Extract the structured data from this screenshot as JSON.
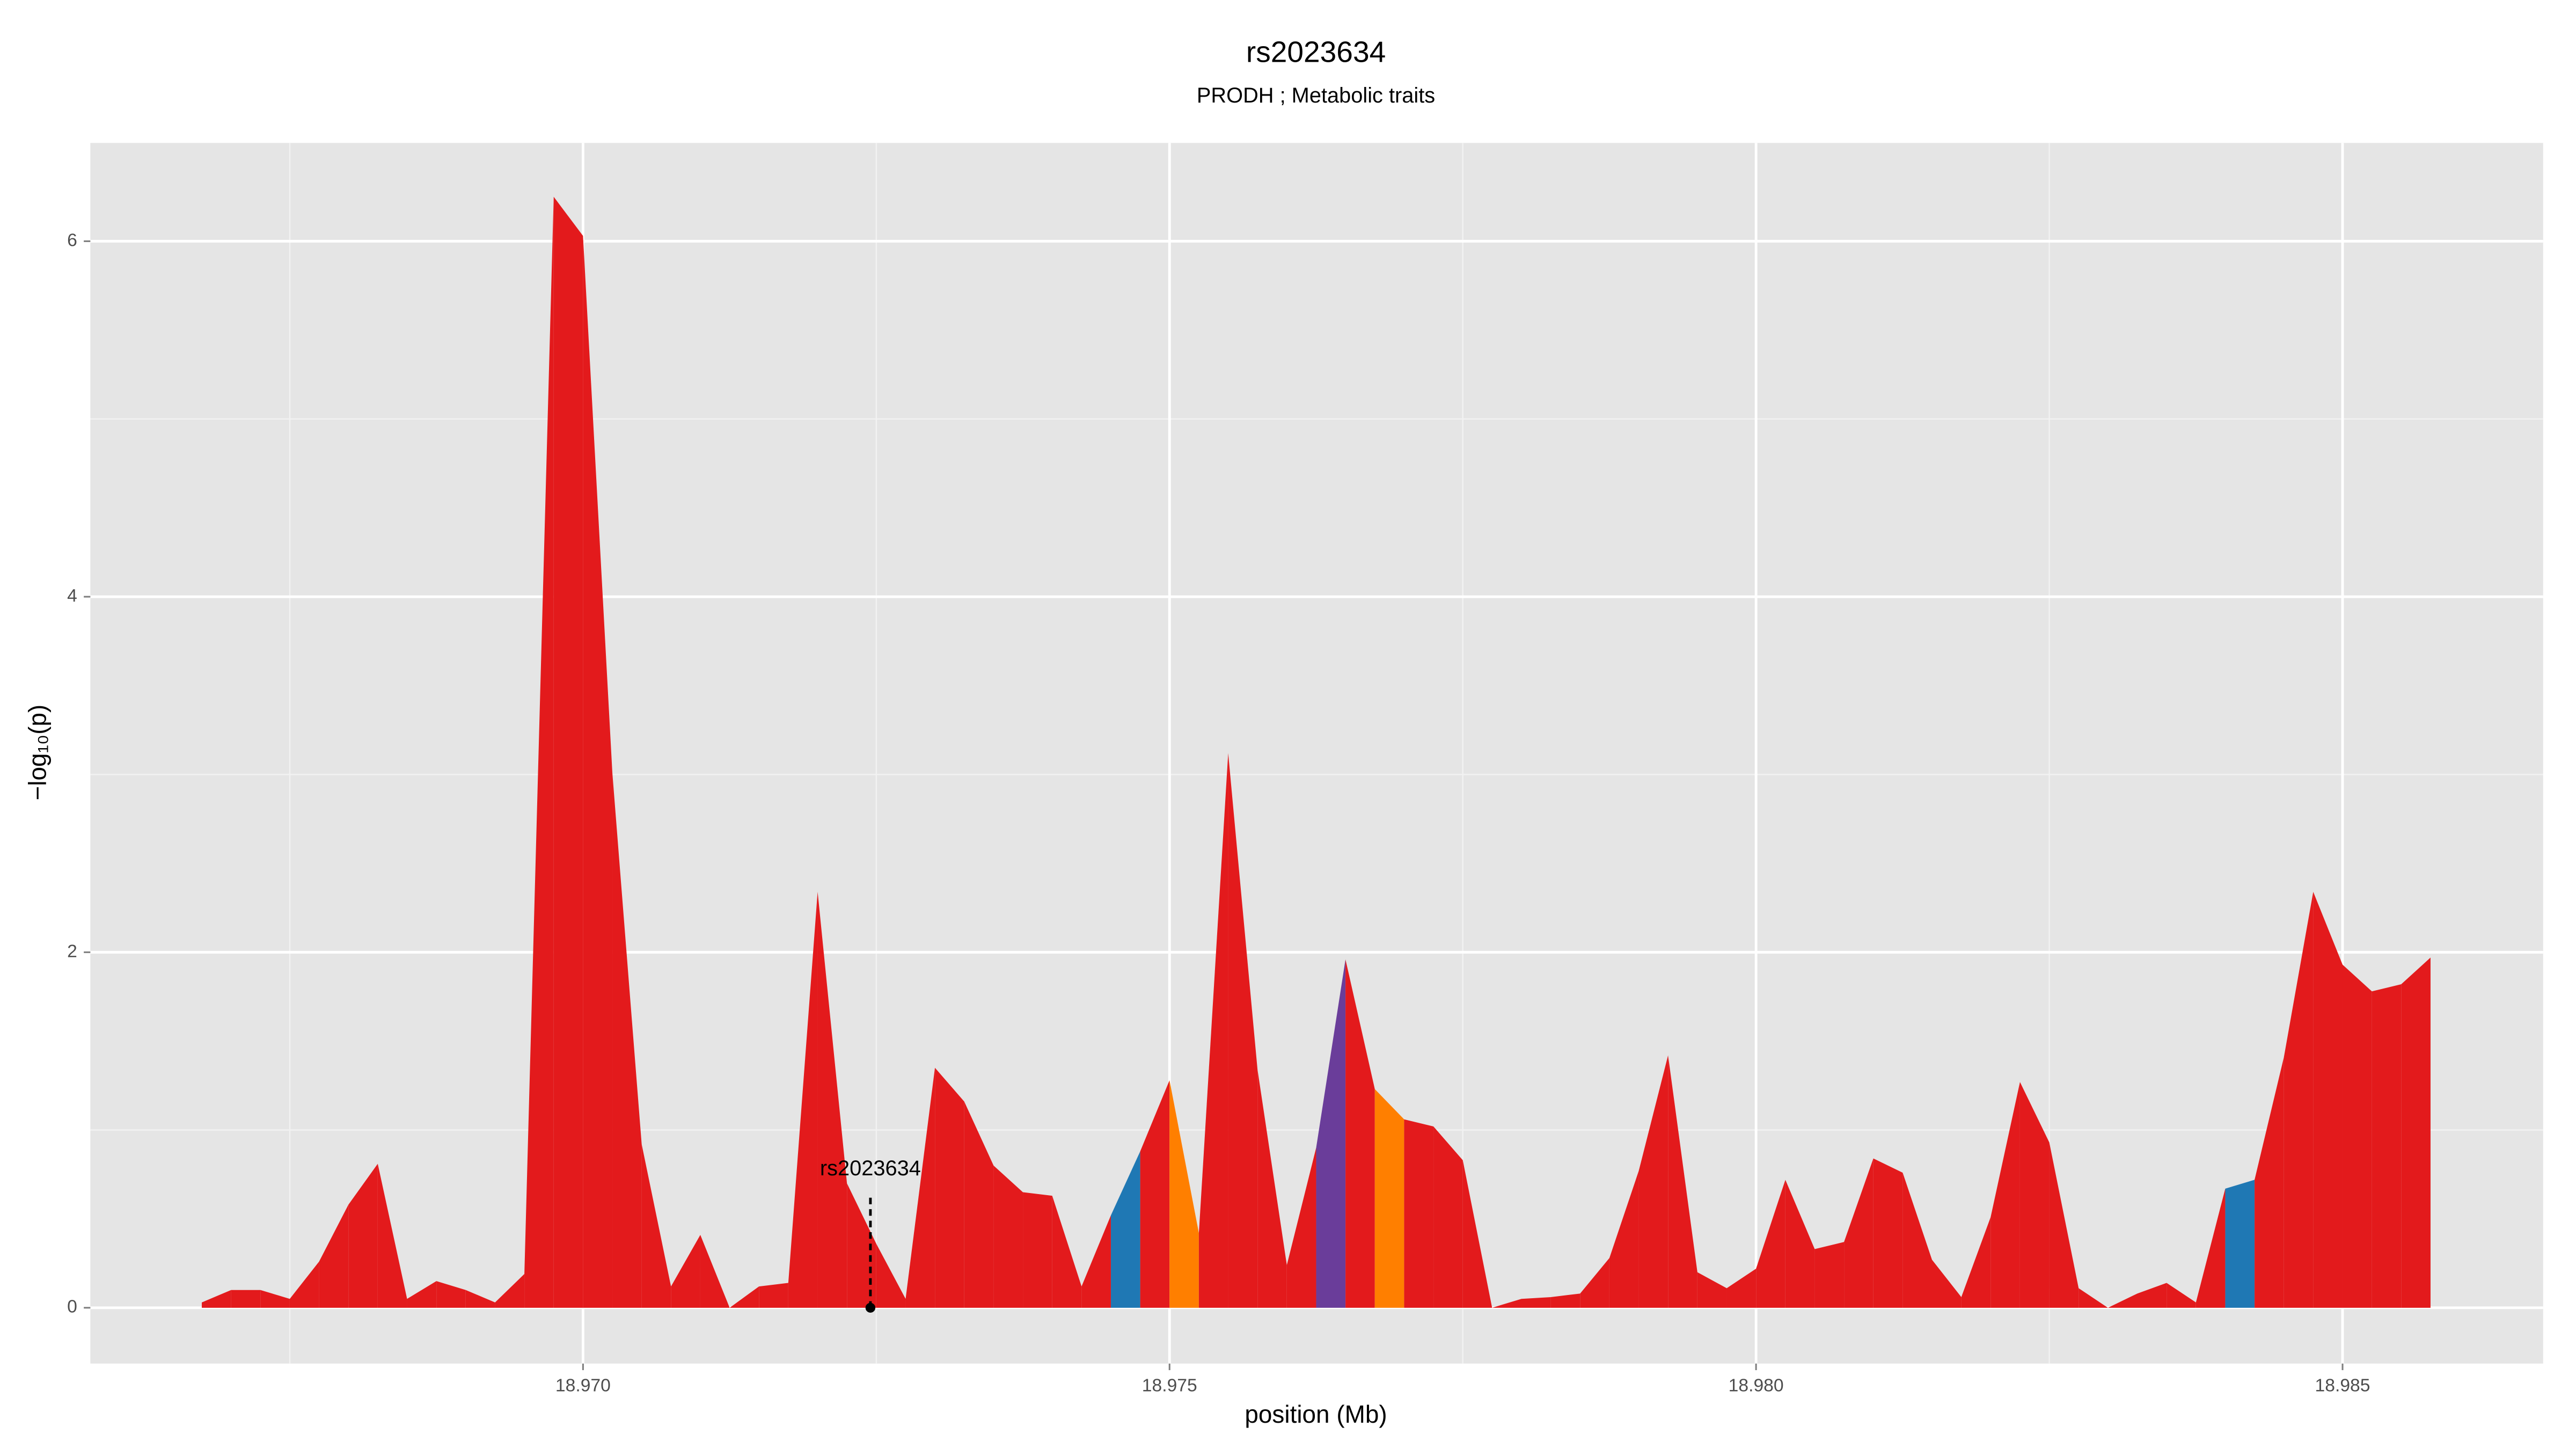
{
  "chart_data": {
    "type": "area",
    "title": "rs2023634",
    "subtitle": "PRODH ; Metabolic traits",
    "x_label": "position (Mb)",
    "y_label": "−log₁₀(p)",
    "x": [
      18.96675,
      18.967,
      18.96725,
      18.9675,
      18.96775,
      18.968,
      18.96825,
      18.9685,
      18.96875,
      18.969,
      18.96925,
      18.9695,
      18.96975,
      18.97,
      18.97025,
      18.9705,
      18.97075,
      18.971,
      18.97125,
      18.9715,
      18.97175,
      18.972,
      18.97225,
      18.9725,
      18.97275,
      18.973,
      18.97325,
      18.9735,
      18.97375,
      18.974,
      18.97425,
      18.9745,
      18.97475,
      18.975,
      18.97525,
      18.9755,
      18.97575,
      18.976,
      18.97625,
      18.9765,
      18.97675,
      18.977,
      18.97725,
      18.9775,
      18.97775,
      18.978,
      18.97825,
      18.9785,
      18.97875,
      18.979,
      18.97925,
      18.9795,
      18.97975,
      18.98,
      18.98025,
      18.9805,
      18.98075,
      18.981,
      18.98125,
      18.9815,
      18.98175,
      18.982,
      18.98225,
      18.9825,
      18.98275,
      18.983,
      18.98325,
      18.9835,
      18.98375,
      18.984,
      18.98425,
      18.9845,
      18.98475,
      18.985,
      18.98525,
      18.9855,
      18.98575
    ],
    "values": [
      0.03,
      0.1,
      0.1,
      0.05,
      0.26,
      0.58,
      0.81,
      0.05,
      0.15,
      0.1,
      0.03,
      0.19,
      6.25,
      6.03,
      3.01,
      0.92,
      0.12,
      0.41,
      0,
      0.12,
      0.14,
      2.34,
      0.7,
      0.36,
      0.05,
      1.35,
      1.16,
      0.8,
      0.65,
      0.63,
      0.12,
      0.52,
      0.88,
      1.28,
      0.42,
      3.12,
      1.34,
      0.24,
      0.9,
      1.96,
      1.23,
      1.06,
      1.02,
      0.83,
      0,
      0.05,
      0.06,
      0.08,
      0.28,
      0.77,
      1.42,
      0.2,
      0.11,
      0.22,
      0.72,
      0.33,
      0.37,
      0.84,
      0.76,
      0.27,
      0.06,
      0.51,
      1.27,
      0.93,
      0.11,
      0,
      0.08,
      0.14,
      0.03,
      0.67,
      0.72,
      1.41,
      2.34,
      1.93,
      1.78,
      1.82,
      1.97
    ],
    "segment_colors": [
      "#e31a1c",
      "#e31a1c",
      "#e31a1c",
      "#e31a1c",
      "#e31a1c",
      "#e31a1c",
      "#e31a1c",
      "#e31a1c",
      "#e31a1c",
      "#e31a1c",
      "#e31a1c",
      "#e31a1c",
      "#e31a1c",
      "#e31a1c",
      "#e31a1c",
      "#e31a1c",
      "#e31a1c",
      "#e31a1c",
      "#e31a1c",
      "#e31a1c",
      "#e31a1c",
      "#e31a1c",
      "#e31a1c",
      "#e31a1c",
      "#e31a1c",
      "#e31a1c",
      "#e31a1c",
      "#e31a1c",
      "#e31a1c",
      "#e31a1c",
      "#e31a1c",
      "#1f78b4",
      "#e31a1c",
      "#ff7f00",
      "#e31a1c",
      "#e31a1c",
      "#e31a1c",
      "#e31a1c",
      "#6a3d9a",
      "#e31a1c",
      "#ff7f00",
      "#e31a1c",
      "#e31a1c",
      "#e31a1c",
      "#e31a1c",
      "#e31a1c",
      "#e31a1c",
      "#e31a1c",
      "#e31a1c",
      "#e31a1c",
      "#e31a1c",
      "#e31a1c",
      "#e31a1c",
      "#e31a1c",
      "#e31a1c",
      "#e31a1c",
      "#e31a1c",
      "#e31a1c",
      "#e31a1c",
      "#e31a1c",
      "#e31a1c",
      "#e31a1c",
      "#e31a1c",
      "#e31a1c",
      "#e31a1c",
      "#e31a1c",
      "#e31a1c",
      "#e31a1c",
      "#e31a1c",
      "#1f78b4",
      "#e31a1c",
      "#e31a1c",
      "#e31a1c",
      "#e31a1c",
      "#e31a1c",
      "#e31a1c"
    ],
    "marker": {
      "label": "rs2023634",
      "x": 18.97245,
      "y": 0
    },
    "xlim": [
      18.9658,
      18.98671
    ],
    "ylim": [
      -0.314,
      6.553
    ],
    "xticks": [
      {
        "value": 18.97,
        "label": "18.970"
      },
      {
        "value": 18.975,
        "label": "18.975"
      },
      {
        "value": 18.98,
        "label": "18.980"
      },
      {
        "value": 18.985,
        "label": "18.985"
      }
    ],
    "yticks": [
      0,
      2,
      4,
      6
    ],
    "x_minor_grid": [
      18.9675,
      18.9725,
      18.9775,
      18.9825
    ],
    "y_minor_grid": [
      1,
      3,
      5
    ],
    "grid": true
  }
}
